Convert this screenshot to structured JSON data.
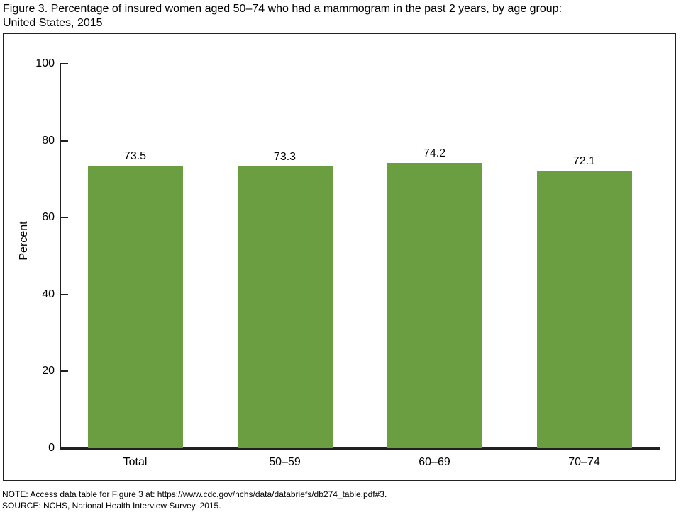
{
  "header": {
    "title_line1": "Figure 3. Percentage of insured women aged 50–74 who had a mammogram in the past 2 years, by age group:",
    "title_line2": "United States, 2015"
  },
  "chart_data": {
    "type": "bar",
    "title": "Figure 3. Percentage of insured women aged 50–74 who had a mammogram in the past 2 years, by age group: United States, 2015",
    "categories": [
      "Total",
      "50–59",
      "60–69",
      "70–74"
    ],
    "values": [
      73.5,
      73.3,
      74.2,
      72.1
    ],
    "value_labels": [
      "73.5",
      "73.3",
      "74.2",
      "72.1"
    ],
    "xlabel": "",
    "ylabel": "Percent",
    "ylim": [
      0,
      100
    ],
    "yticks": [
      0,
      20,
      40,
      60,
      80,
      100
    ],
    "grid": false,
    "legend": false,
    "bar_color": "#6B9E40",
    "axis_color": "#231f20"
  },
  "footer": {
    "note": "NOTE: Access data table for Figure 3 at: https://www.cdc.gov/nchs/data/databriefs/db274_table.pdf#3.",
    "source": "SOURCE: NCHS, National Health Interview Survey, 2015."
  }
}
